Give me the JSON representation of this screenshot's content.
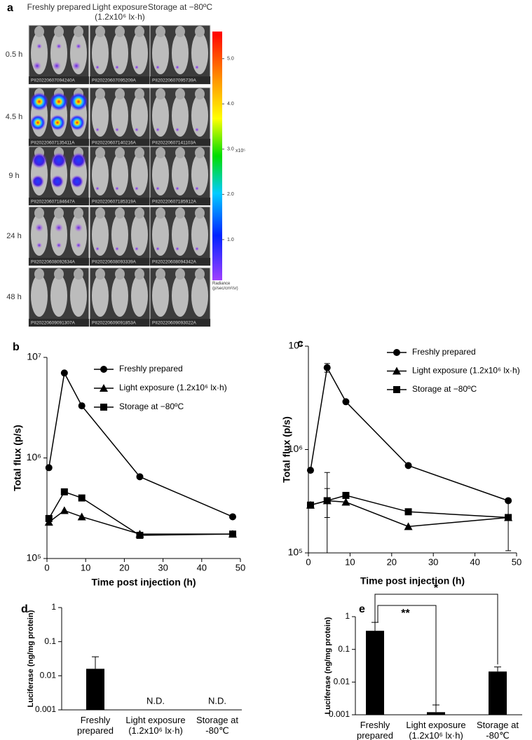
{
  "panel_a": {
    "label": "a",
    "columns": [
      "Freshly prepared",
      "Light exposure (1.2x10⁶ lx·h)",
      "Storage at −80ºC"
    ],
    "rows": [
      "0.5 h",
      "4.5 h",
      "9 h",
      "24 h",
      "48 h"
    ],
    "image_ids": [
      [
        "PII20220607094240A",
        "PII20220607095209A",
        "PII20220607095739A"
      ],
      [
        "PII20220607135411A",
        "PII20220607140216A",
        "PII20220607141103A"
      ],
      [
        "PII20220607184647A",
        "PII20220607185319A",
        "PII20220607185912A"
      ],
      [
        "PII20220608092634A",
        "PII20220608093339A",
        "PII20220608094342A"
      ],
      [
        "PII20220609091307A",
        "PII20220609091853A",
        "PII20220609093022A"
      ]
    ],
    "colorbar": {
      "lim": [
        0.1,
        5.6
      ],
      "ticks": [
        {
          "value": 5,
          "label": "5.0"
        },
        {
          "value": 4,
          "label": "4.0"
        },
        {
          "value": 3,
          "label": "3.0"
        },
        {
          "value": 2,
          "label": "2.0"
        },
        {
          "value": 1,
          "label": "1.0"
        }
      ],
      "multiplier": "x10⁵",
      "title": "Radiance (p/sec/cm²/sr)"
    }
  },
  "chart_data": [
    {
      "type": "line",
      "label": "b",
      "xlabel": "Time post injection (h)",
      "ylabel": "Total flux (p/s)",
      "x": [
        0.5,
        4.5,
        9,
        24,
        48
      ],
      "xlim": [
        0,
        50
      ],
      "xticks": [
        0,
        10,
        20,
        30,
        40,
        50
      ],
      "ylim": [
        100000,
        10000000
      ],
      "yscale": "log",
      "yticks": [
        {
          "value": 100000,
          "label": "10⁵"
        },
        {
          "value": 1000000,
          "label": "10⁶"
        },
        {
          "value": 10000000,
          "label": "10⁷"
        }
      ],
      "legend": "top",
      "series": [
        {
          "name": "Freshly prepared",
          "color": "#000000",
          "marker": "circle",
          "values": [
            800000,
            7000000,
            3300000,
            650000,
            260000
          ]
        },
        {
          "name": "Light exposure  (1.2x10⁶ lx·h)",
          "color": "#000000",
          "marker": "triangle",
          "values": [
            230000,
            300000,
            260000,
            175000,
            175000
          ]
        },
        {
          "name": "Storage at −80ºC",
          "color": "#000000",
          "marker": "square",
          "values": [
            250000,
            460000,
            400000,
            170000,
            175000
          ]
        }
      ]
    },
    {
      "type": "line",
      "label": "c",
      "xlabel": "Time post injection (h)",
      "ylabel": "Total flux (p/s)",
      "x": [
        0.5,
        4.5,
        9,
        24,
        48
      ],
      "xlim": [
        0,
        50
      ],
      "xticks": [
        0,
        10,
        20,
        30,
        40,
        50
      ],
      "ylim": [
        100000,
        10000000
      ],
      "yscale": "log",
      "yticks": [
        {
          "value": 100000,
          "label": "10⁵"
        },
        {
          "value": 1000000,
          "label": "10⁶"
        },
        {
          "value": 10000000,
          "label": "10⁷"
        }
      ],
      "legend": "top",
      "series": [
        {
          "name": "Freshly prepared",
          "color": "#000000",
          "marker": "circle",
          "values": [
            630000,
            6200000,
            2900000,
            700000,
            320000
          ],
          "errors": [
            null,
            600000,
            null,
            null,
            null
          ]
        },
        {
          "name": "Light exposure  (1.2x10⁶ lx·h)",
          "color": "#000000",
          "marker": "triangle",
          "values": [
            290000,
            320000,
            310000,
            180000,
            220000
          ],
          "errors": [
            null,
            100000,
            null,
            null,
            null
          ]
        },
        {
          "name": "Storage at −80ºC",
          "color": "#000000",
          "marker": "square",
          "values": [
            290000,
            320000,
            360000,
            250000,
            220000
          ],
          "errors": [
            null,
            280000,
            null,
            null,
            115000
          ]
        }
      ]
    },
    {
      "type": "bar",
      "label": "d",
      "ylabel": "Luciferase (ng/mg protein)",
      "categories": [
        "Freshly prepared",
        "Light exposure (1.2x10⁶ lx·h)",
        "Storage at -80℃"
      ],
      "values": [
        0.016,
        null,
        null
      ],
      "errors": [
        0.02,
        null,
        null
      ],
      "value_labels": [
        null,
        "N.D.",
        "N.D."
      ],
      "color": "#000000",
      "ylim": [
        0.001,
        1
      ],
      "yscale": "log",
      "yticks": [
        0.001,
        0.01,
        0.1,
        1
      ]
    },
    {
      "type": "bar",
      "label": "e",
      "ylabel": "Luciferase (ng/mg protein)",
      "categories": [
        "Freshly prepared",
        "Light exposure (1.2x10⁶ lx·h)",
        "Storage at -80℃"
      ],
      "values": [
        0.37,
        0.0012,
        0.021
      ],
      "errors": [
        0.3,
        0.0008,
        0.008
      ],
      "color": "#000000",
      "ylim": [
        0.001,
        1
      ],
      "yscale": "log",
      "yticks": [
        0.001,
        0.01,
        0.1,
        1
      ],
      "annotations": [
        "**",
        "*"
      ]
    }
  ]
}
